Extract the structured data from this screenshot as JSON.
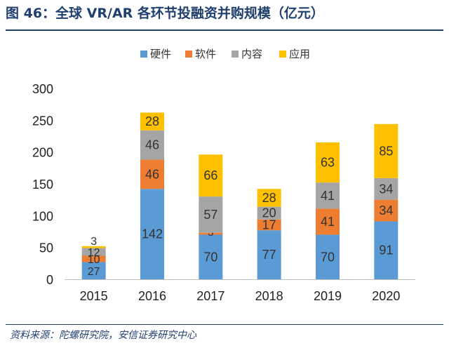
{
  "header": {
    "title": "图 46：全球 VR/AR 各环节投融资并购规模（亿元）"
  },
  "footer": {
    "source": "资料来源：陀螺研究院，安信证券研究中心"
  },
  "chart_data": {
    "type": "bar",
    "stacked": true,
    "categories": [
      "2015",
      "2016",
      "2017",
      "2018",
      "2019",
      "2020"
    ],
    "series": [
      {
        "name": "硬件",
        "color": "#5b9bd5",
        "values": [
          27,
          142,
          70,
          77,
          70,
          91
        ]
      },
      {
        "name": "软件",
        "color": "#ed7d31",
        "values": [
          10,
          46,
          3,
          17,
          41,
          34
        ]
      },
      {
        "name": "内容",
        "color": "#a5a5a5",
        "values": [
          12,
          46,
          57,
          20,
          41,
          34
        ]
      },
      {
        "name": "应用",
        "color": "#ffc000",
        "values": [
          3,
          28,
          66,
          28,
          63,
          85
        ]
      }
    ],
    "yticks": [
      "0",
      "50",
      "100",
      "150",
      "200",
      "250",
      "300"
    ],
    "ylim": [
      0,
      300
    ],
    "legend_position": "top",
    "grid": false
  }
}
